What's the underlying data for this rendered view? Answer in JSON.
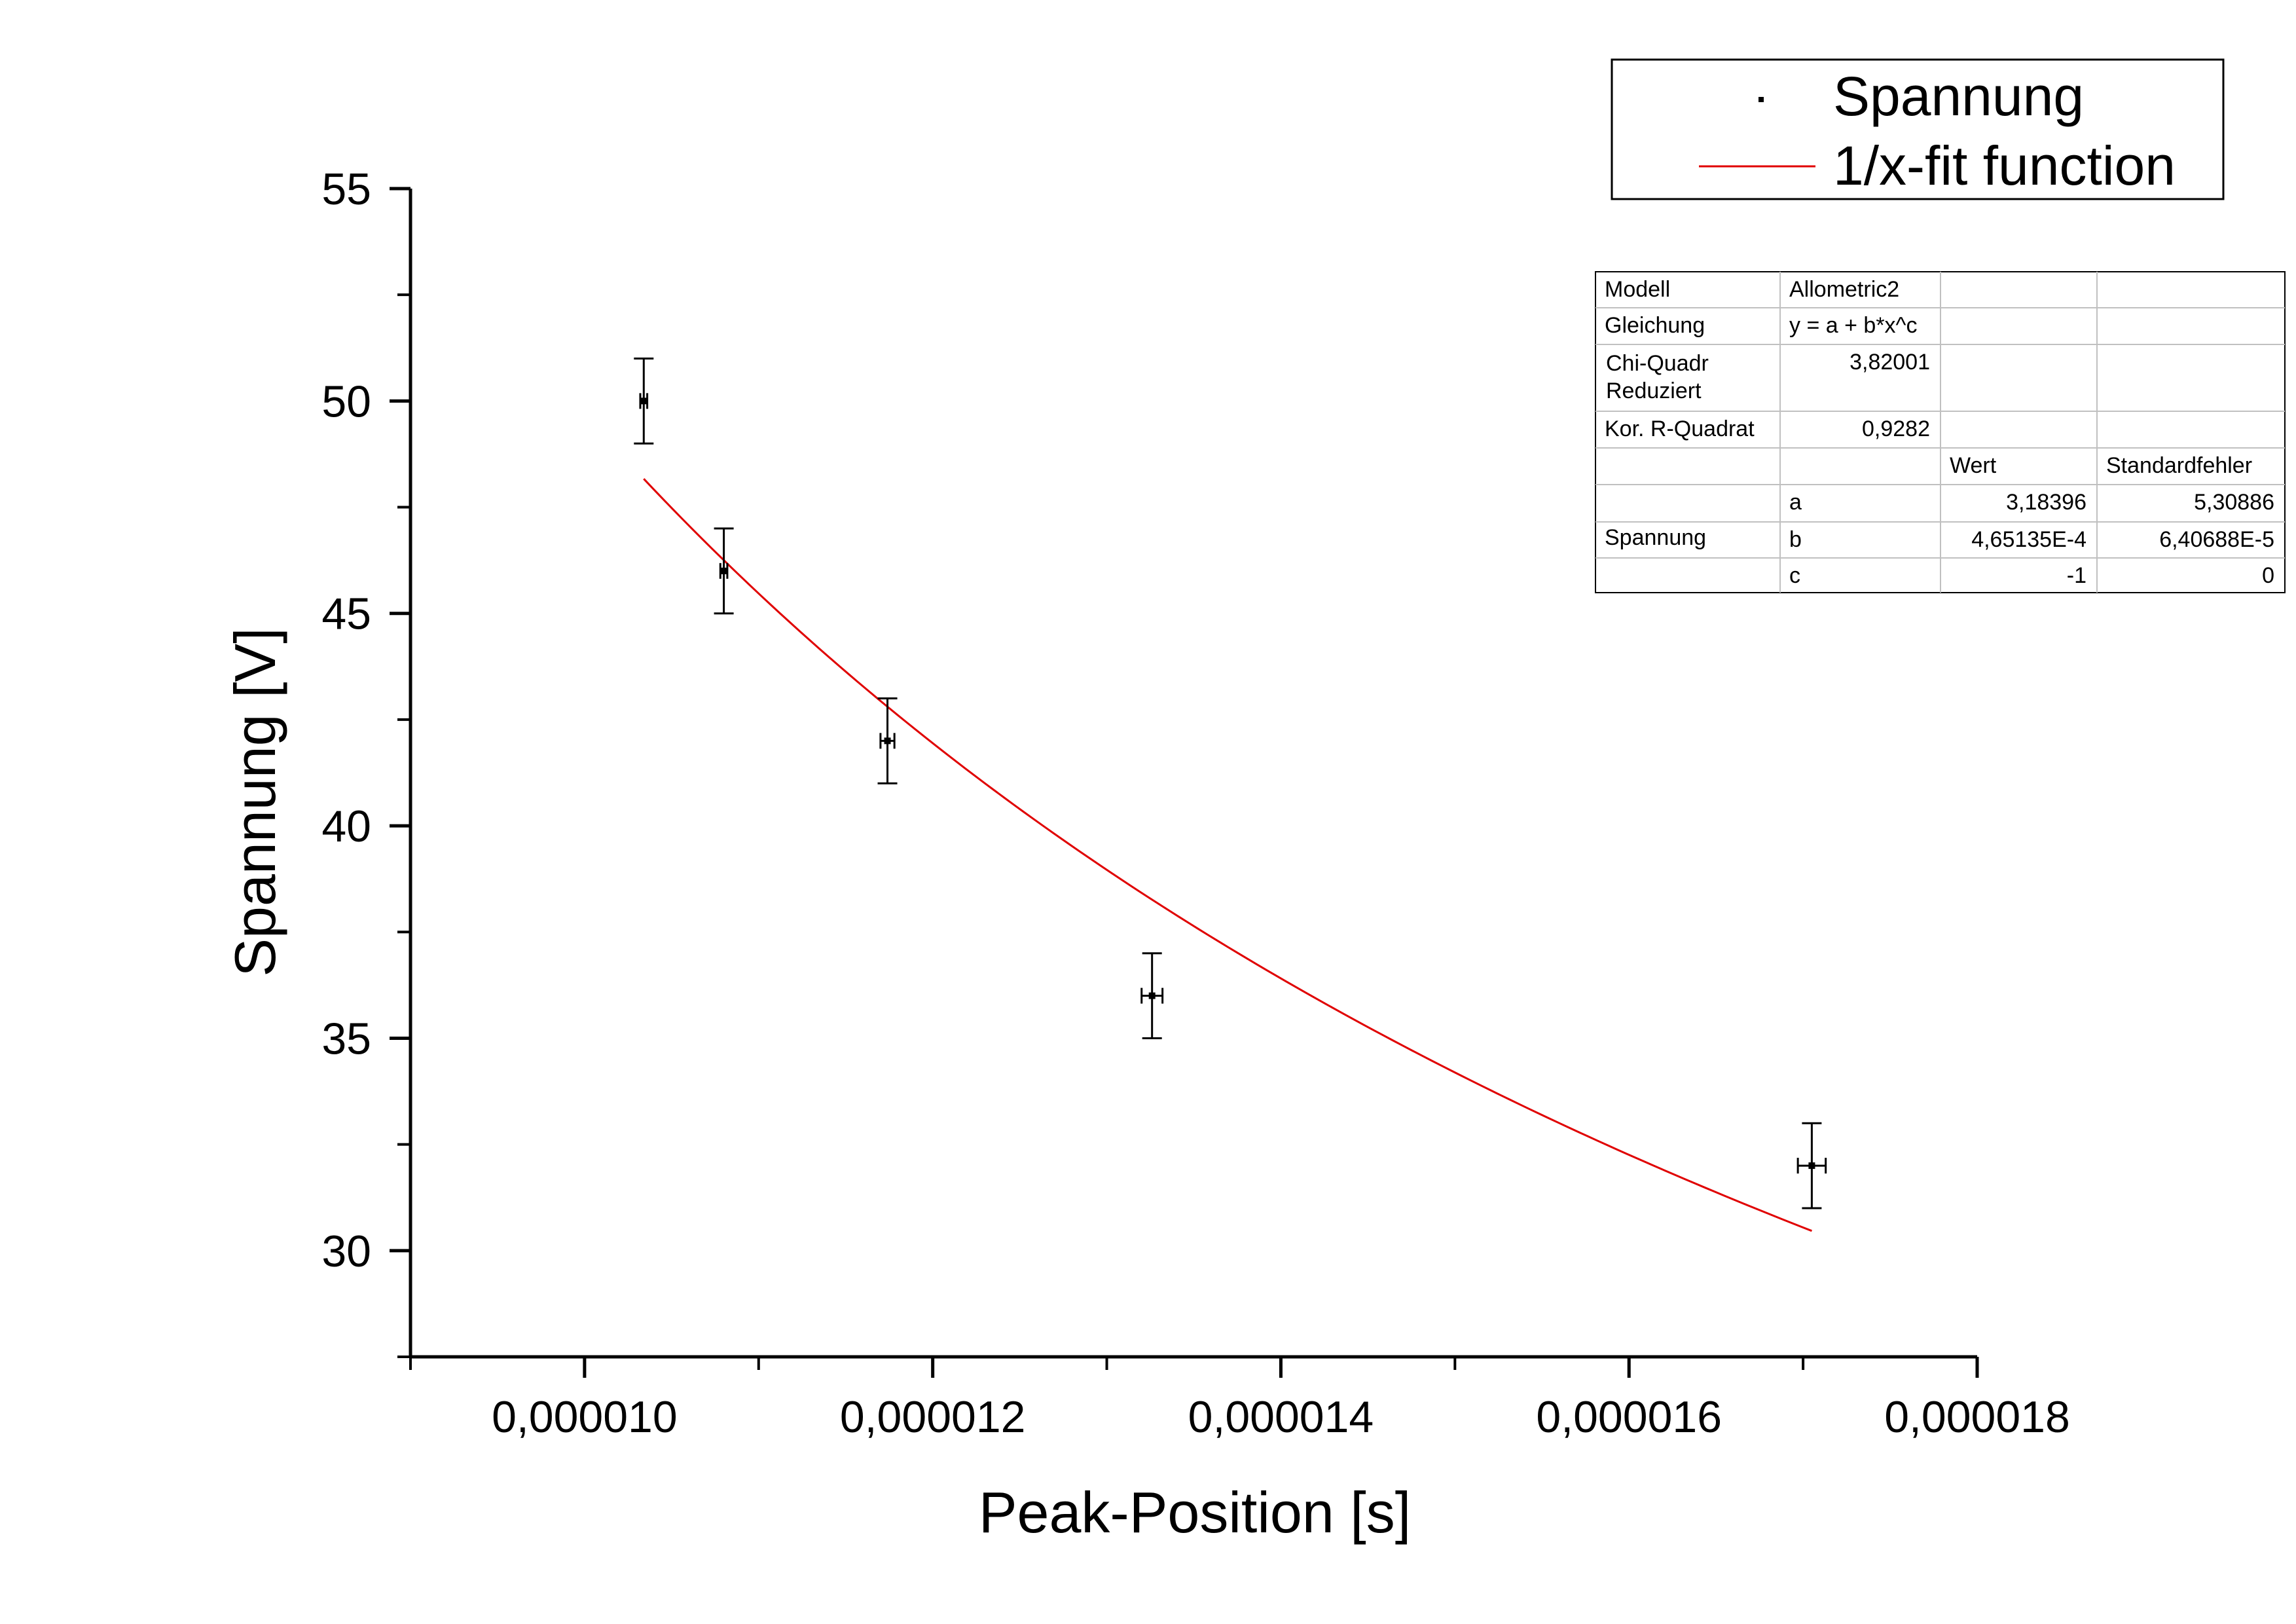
{
  "chart_data": {
    "type": "scatter",
    "xlabel": "Peak-Position [s]",
    "ylabel": "Spannung [V]",
    "xlim": [
      9e-06,
      1.8e-05
    ],
    "ylim": [
      27.5,
      55
    ],
    "x_ticks": [
      1e-05,
      1.2e-05,
      1.4e-05,
      1.6e-05,
      1.8e-05
    ],
    "x_tick_labels": [
      "0,000010",
      "0,000012",
      "0,000014",
      "0,000016",
      "0,000018"
    ],
    "y_ticks": [
      30,
      35,
      40,
      45,
      50,
      55
    ],
    "y_tick_labels": [
      "30",
      "35",
      "40",
      "45",
      "50",
      "55"
    ],
    "grid": false,
    "legend_position": "top-right",
    "series": [
      {
        "name": "Spannung",
        "kind": "points-with-error-bars",
        "color": "#000000",
        "points": [
          {
            "x": 1.034e-05,
            "y": 50,
            "yerr": 1,
            "xerr": 2e-08
          },
          {
            "x": 1.08e-05,
            "y": 46,
            "yerr": 1,
            "xerr": 2e-08
          },
          {
            "x": 1.174e-05,
            "y": 42,
            "yerr": 1,
            "xerr": 4e-08
          },
          {
            "x": 1.326e-05,
            "y": 36,
            "yerr": 1,
            "xerr": 6e-08
          },
          {
            "x": 1.705e-05,
            "y": 32,
            "yerr": 1,
            "xerr": 8e-08
          }
        ]
      },
      {
        "name": "1/x-fit function",
        "kind": "fit-line",
        "color": "#e00000",
        "model": {
          "a": 3.18396,
          "b": 0.000465135,
          "c": -1
        },
        "x_range": [
          1.034e-05,
          1.705e-05
        ]
      }
    ],
    "fit_table": {
      "rows": [
        [
          "Modell",
          "Allometric2",
          "",
          ""
        ],
        [
          "Gleichung",
          "y = a + b*x^c",
          "",
          ""
        ],
        [
          "Chi-Quadr Reduziert",
          "3,82001",
          "",
          ""
        ],
        [
          "Kor. R-Quadrat",
          "0,9282",
          "",
          ""
        ],
        [
          "",
          "",
          "Wert",
          "Standardfehler"
        ],
        [
          "Spannung",
          "a",
          "3,18396",
          "5,30886"
        ],
        [
          "",
          "b",
          "4,65135E-4",
          "6,40688E-5"
        ],
        [
          "",
          "c",
          "-1",
          "0"
        ]
      ]
    }
  }
}
